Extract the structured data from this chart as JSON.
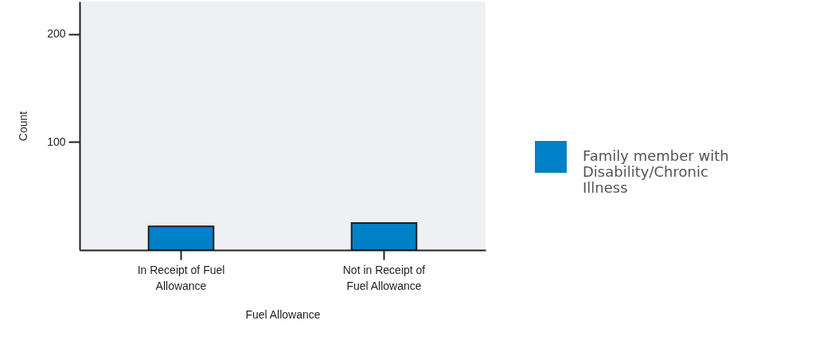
{
  "chart_data": {
    "type": "bar",
    "xlabel": "Fuel Allowance",
    "ylabel": "Count",
    "categories": [
      "In Receipt of Fuel Allowance",
      "Not in Receipt of Fuel Allowance"
    ],
    "series": [
      {
        "name": "Family member with Disability/Chronic Illness",
        "color": "#0080c6",
        "values": [
          22,
          25
        ]
      }
    ],
    "ylim": [
      0,
      230
    ],
    "yticks": [
      100,
      200
    ],
    "grid": false,
    "legend": "right"
  }
}
